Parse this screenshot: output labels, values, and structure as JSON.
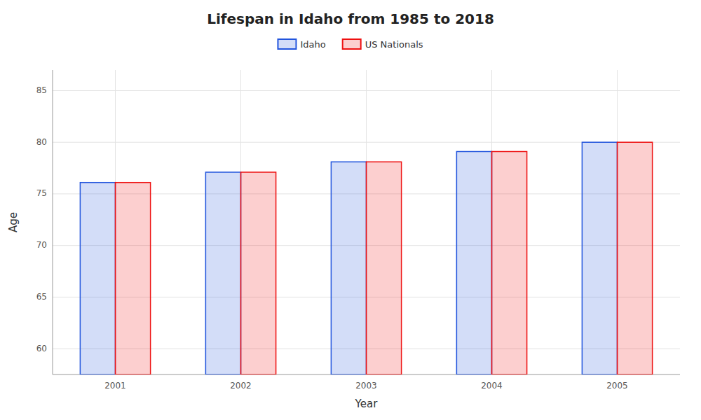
{
  "chart_data": {
    "type": "bar",
    "title": "Lifespan in Idaho from 1985 to 2018",
    "xlabel": "Year",
    "ylabel": "Age",
    "categories": [
      "2001",
      "2002",
      "2003",
      "2004",
      "2005"
    ],
    "series": [
      {
        "name": "Idaho",
        "color": "#2255dd",
        "values": [
          76.1,
          77.1,
          78.1,
          79.1,
          80.0
        ]
      },
      {
        "name": "US Nationals",
        "color": "#ee1111",
        "values": [
          76.1,
          77.1,
          78.1,
          79.1,
          80.0
        ]
      }
    ],
    "ylim": [
      57.5,
      87
    ],
    "yticks": [
      60,
      65,
      70,
      75,
      80,
      85
    ],
    "grid": true,
    "legend": "top"
  }
}
